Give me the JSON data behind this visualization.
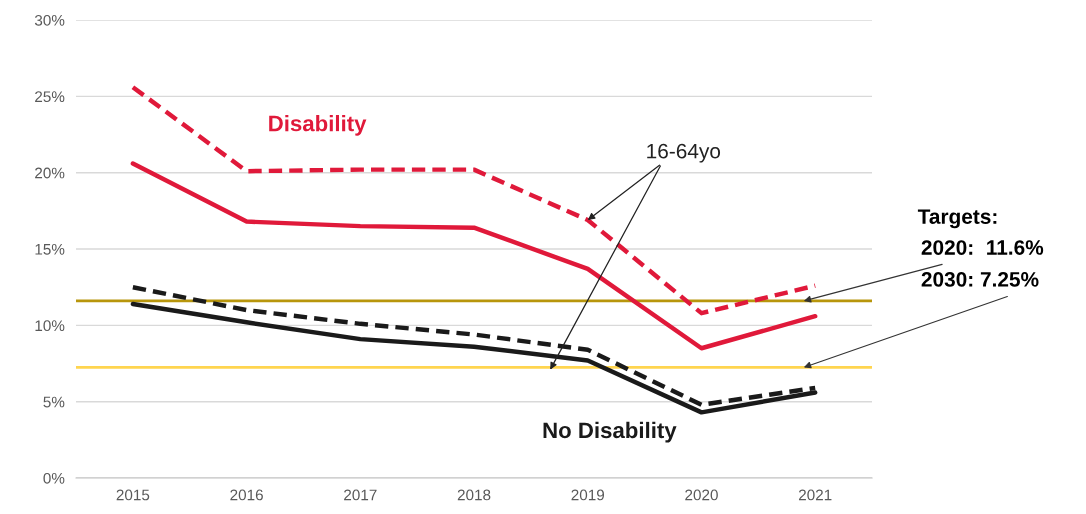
{
  "chart_data": {
    "type": "line",
    "categories": [
      "2015",
      "2016",
      "2017",
      "2018",
      "2019",
      "2020",
      "2021"
    ],
    "series": [
      {
        "color": "#e0193a",
        "line_style": "dashed",
        "values": [
          25.6,
          20.1,
          20.2,
          20.2,
          16.9,
          10.8,
          12.6
        ]
      },
      {
        "color": "#e0193a",
        "line_style": "solid",
        "values": [
          20.6,
          16.8,
          16.5,
          16.4,
          13.7,
          8.5,
          10.6
        ]
      },
      {
        "color": "#1a1a1a",
        "line_style": "dashed",
        "values": [
          12.5,
          11.0,
          10.1,
          9.4,
          8.4,
          4.8,
          5.9
        ]
      },
      {
        "color": "#1a1a1a",
        "line_style": "solid",
        "values": [
          11.4,
          10.2,
          9.1,
          8.6,
          7.7,
          4.3,
          5.6
        ]
      }
    ],
    "ylim": [
      0,
      30
    ],
    "yticks": [
      {
        "value": 0,
        "label": "0%"
      },
      {
        "value": 5,
        "label": "5%"
      },
      {
        "value": 10,
        "label": "10%"
      },
      {
        "value": 15,
        "label": "15%"
      },
      {
        "value": 20,
        "label": "20%"
      },
      {
        "value": 25,
        "label": "25%"
      },
      {
        "value": 30,
        "label": "30%"
      }
    ],
    "grid": "y",
    "legend": false,
    "ref_lines": [
      {
        "axis": "y",
        "value": 11.6,
        "label": "2020:  11.6%",
        "color": "#b8960c"
      },
      {
        "axis": "y",
        "value": 7.25,
        "label": "2030: 7.25%",
        "color": "#ffd54f"
      }
    ],
    "annotations": [
      "Disability",
      "No Disability",
      {
        "text": "16-64yo",
        "x": "2019",
        "y": 16.9
      },
      "Targets:"
    ]
  }
}
